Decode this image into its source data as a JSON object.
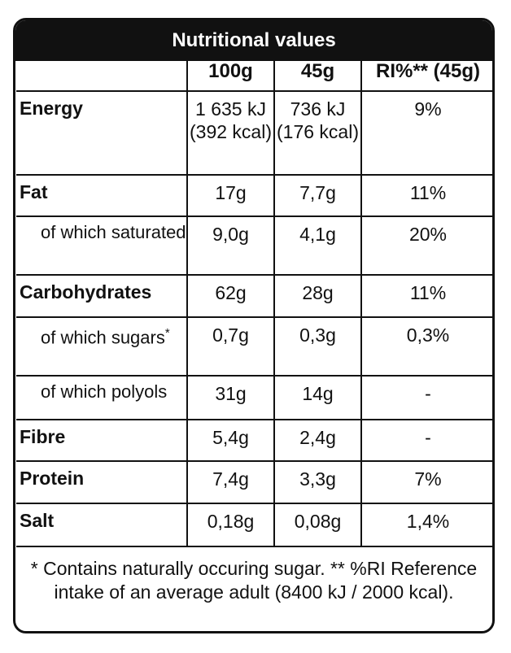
{
  "title": "Nutritional values",
  "columns": [
    "",
    "100g",
    "45g",
    "RI%** (45g)"
  ],
  "rows": [
    {
      "name": "Energy",
      "bold": true,
      "sub": false,
      "v100": "1 635 kJ (392 kcal)",
      "v45": "736 kJ (176 kcal)",
      "ri": "9%"
    },
    {
      "name": "Fat",
      "bold": true,
      "sub": false,
      "v100": "17g",
      "v45": "7,7g",
      "ri": "11%"
    },
    {
      "name": "of which saturated",
      "bold": false,
      "sub": true,
      "v100": "9,0g",
      "v45": "4,1g",
      "ri": "20%"
    },
    {
      "name": "Carbohydrates",
      "bold": true,
      "sub": false,
      "v100": "62g",
      "v45": "28g",
      "ri": "11%"
    },
    {
      "name": "of which sugars",
      "mark": "*",
      "bold": false,
      "sub": true,
      "v100": "0,7g",
      "v45": "0,3g",
      "ri": "0,3%"
    },
    {
      "name": "of which polyols",
      "bold": false,
      "sub": true,
      "v100": "31g",
      "v45": "14g",
      "ri": "-"
    },
    {
      "name": "Fibre",
      "bold": true,
      "sub": false,
      "v100": "5,4g",
      "v45": "2,4g",
      "ri": "-"
    },
    {
      "name": "Protein",
      "bold": true,
      "sub": false,
      "v100": "7,4g",
      "v45": "3,3g",
      "ri": "7%"
    },
    {
      "name": "Salt",
      "bold": true,
      "sub": false,
      "v100": "0,18g",
      "v45": "0,08g",
      "ri": "1,4%"
    }
  ],
  "footnote": "* Contains naturally occuring sugar. ** %RI Reference intake of an average adult (8400 kJ / 2000 kcal)."
}
